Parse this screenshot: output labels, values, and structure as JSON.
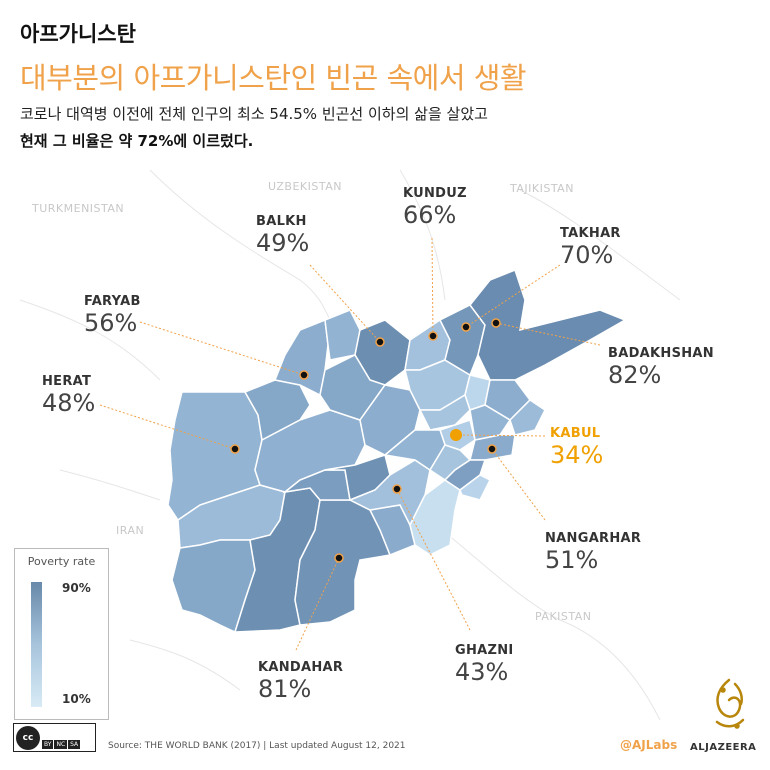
{
  "header": {
    "title": "아프가니스탄",
    "headline": "대부분의 아프가니스탄인 빈곤 속에서 생활",
    "subtitle_line1": "코로나 대역병 이전에 전체 인구의 최소 54.5% 빈곤선 이하의 삶을 살았고",
    "subtitle_line2": "현재 그 비율은 약 72%에 이르렀다."
  },
  "countries": {
    "uzbekistan": "UZBEKISTAN",
    "tajikistan": "TAJIKISTAN",
    "turkmenistan": "TURKMENISTAN",
    "iran": "IRAN",
    "pakistan": "PAKISTAN"
  },
  "provinces": {
    "balkh": {
      "name": "BALKH",
      "value": "49%"
    },
    "kunduz": {
      "name": "KUNDUZ",
      "value": "66%"
    },
    "takhar": {
      "name": "TAKHAR",
      "value": "70%"
    },
    "faryab": {
      "name": "FARYAB",
      "value": "56%"
    },
    "badakhshan": {
      "name": "BADAKHSHAN",
      "value": "82%"
    },
    "herat": {
      "name": "HERAT",
      "value": "48%"
    },
    "kabul": {
      "name": "KABUL",
      "value": "34%"
    },
    "nangarhar": {
      "name": "NANGARHAR",
      "value": "51%"
    },
    "ghazni": {
      "name": "GHAZNI",
      "value": "43%"
    },
    "kandahar": {
      "name": "KANDAHAR",
      "value": "81%"
    }
  },
  "legend": {
    "title": "Poverty rate",
    "max": "90%",
    "min": "10%"
  },
  "colors": {
    "accent": "#f0a24a",
    "dark": "#6f8fb0",
    "light": "#d8ebf6",
    "kabul": "#f0a000"
  },
  "footer": {
    "cc_flags": [
      "BY",
      "NC",
      "SA"
    ],
    "source": "Source: THE WORLD BANK (2017) | Last updated August 12, 2021",
    "handle": "@AJLabs",
    "brand": "ALJAZEERA"
  }
}
